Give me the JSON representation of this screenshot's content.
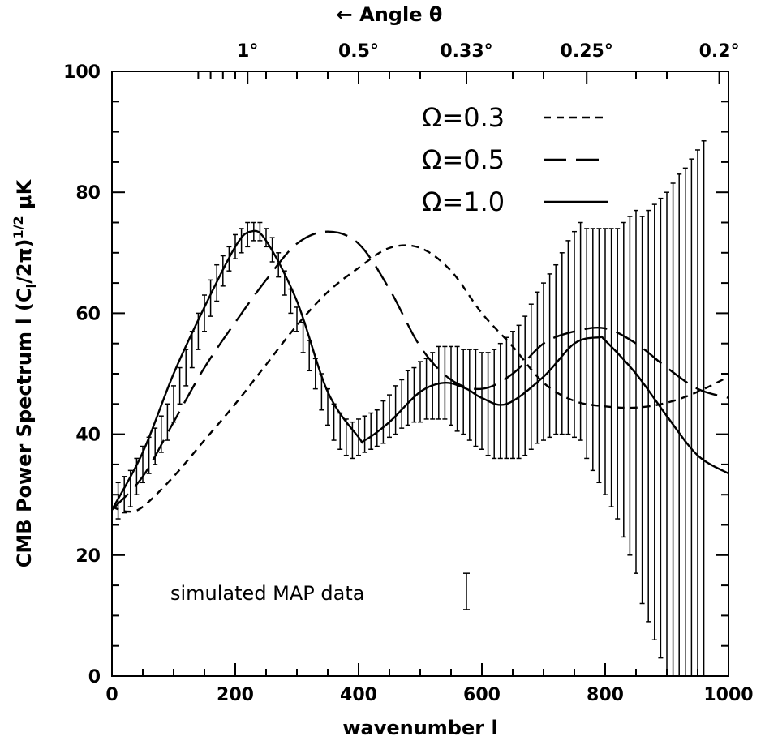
{
  "chart_data": {
    "type": "line",
    "xlabel": "wavenumber l",
    "ylabel": "CMB Power Spectrum l (Cₗ/2π)¹ᐟ² μK",
    "ylabel_parts": {
      "main": "CMB Power Spectrum l (C",
      "sub": "l",
      "mid": "/2π)",
      "sup": "1/2",
      "tail": " μK"
    },
    "top_axis_title": "← Angle θ",
    "top_tick_labels": [
      {
        "label": "1°",
        "l": 220
      },
      {
        "label": "0.5°",
        "l": 400
      },
      {
        "label": "0.33°",
        "l": 575
      },
      {
        "label": "0.25°",
        "l": 770
      },
      {
        "label": "0.2°",
        "l": 985
      }
    ],
    "xlim": [
      0,
      1000
    ],
    "ylim": [
      0,
      100
    ],
    "xticks": [
      0,
      200,
      400,
      600,
      800,
      1000
    ],
    "yticks": [
      0,
      20,
      40,
      60,
      80,
      100
    ],
    "legend_position": "top-right",
    "annotation": "simulated MAP data",
    "annotation_errorbar": {
      "x": 575,
      "y_low": 11,
      "y_high": 17
    },
    "series": [
      {
        "name": "Ω=0.3",
        "dash": "short",
        "x": [
          0,
          25,
          50,
          100,
          150,
          200,
          250,
          300,
          350,
          400,
          450,
          500,
          550,
          600,
          650,
          700,
          750,
          800,
          850,
          900,
          950,
          1000
        ],
        "values": [
          28,
          27.2,
          28,
          33,
          39,
          45,
          51.5,
          58,
          63.5,
          67.5,
          70.8,
          70.8,
          67,
          60,
          54.5,
          48.5,
          45.5,
          44.6,
          44.4,
          45.2,
          47,
          49.5
        ]
      },
      {
        "name": "Ω=0.5",
        "dash": "long",
        "x": [
          0,
          50,
          100,
          150,
          200,
          250,
          300,
          350,
          400,
          450,
          500,
          550,
          600,
          650,
          700,
          750,
          800,
          850,
          900,
          950,
          1000
        ],
        "values": [
          27.5,
          33,
          42,
          51,
          58.5,
          65.5,
          71.5,
          73.5,
          71.5,
          64,
          54.5,
          49,
          47.5,
          50,
          55,
          57,
          57.5,
          55,
          51,
          47.5,
          46
        ]
      },
      {
        "name": "Ω=1.0",
        "dash": "solid",
        "x": [
          0,
          50,
          100,
          150,
          200,
          225,
          250,
          300,
          350,
          400,
          410,
          450,
          500,
          540,
          575,
          600,
          640,
          700,
          750,
          790,
          800,
          850,
          900,
          950,
          1000
        ],
        "values": [
          27.5,
          37,
          50,
          61,
          71,
          73.5,
          72,
          62,
          47,
          39.5,
          39,
          42,
          47,
          48.5,
          47.5,
          46,
          45,
          49.5,
          55,
          56,
          55.5,
          50,
          43,
          36.5,
          33.5
        ]
      }
    ],
    "data_points": {
      "name": "simulated MAP data",
      "x": [
        10,
        20,
        30,
        40,
        50,
        60,
        70,
        80,
        90,
        100,
        110,
        120,
        130,
        140,
        150,
        160,
        170,
        180,
        190,
        200,
        210,
        220,
        230,
        240,
        250,
        260,
        270,
        280,
        290,
        300,
        310,
        320,
        330,
        340,
        350,
        360,
        370,
        380,
        390,
        400,
        410,
        420,
        430,
        440,
        450,
        460,
        470,
        480,
        490,
        500,
        510,
        520,
        530,
        540,
        550,
        560,
        570,
        580,
        590,
        600,
        610,
        620,
        630,
        640,
        650,
        660,
        670,
        680,
        690,
        700,
        710,
        720,
        730,
        740,
        750,
        760,
        770,
        780,
        790,
        800,
        810,
        820,
        830,
        840,
        850,
        860,
        870,
        880,
        890,
        900,
        910,
        920,
        930,
        940,
        950,
        960
      ],
      "values": [
        29,
        30,
        31,
        33,
        35,
        36.5,
        38,
        40,
        42,
        45,
        48,
        51,
        54,
        57,
        60,
        62.5,
        65,
        67,
        69,
        71,
        72,
        73,
        73.5,
        73.5,
        72.5,
        70.5,
        68,
        65,
        62,
        59,
        56,
        53,
        50,
        47,
        44.5,
        42,
        40.5,
        39.5,
        39,
        39.5,
        40,
        40.5,
        41,
        42,
        43,
        44,
        45,
        46,
        46.5,
        47,
        47.5,
        48,
        48.5,
        48.5,
        48,
        47.5,
        47,
        46.5,
        46,
        45.5,
        45,
        45,
        45.5,
        46,
        46.5,
        47,
        48,
        49.5,
        51,
        52,
        53,
        54,
        55,
        56,
        56.5,
        57,
        55,
        54,
        53,
        52,
        51,
        50,
        49,
        48,
        47,
        44,
        43,
        42,
        41,
        40,
        39.5,
        39,
        38,
        37.5,
        37,
        36.5
      ],
      "err": [
        3,
        3,
        3,
        3,
        3,
        3,
        3,
        3,
        3,
        3,
        3,
        3,
        3,
        3,
        3,
        3,
        3,
        2.5,
        2,
        2,
        2,
        2,
        1.5,
        1.5,
        1.5,
        2,
        2,
        2,
        2,
        2,
        2.5,
        2.5,
        2.5,
        3,
        3,
        3,
        3,
        3,
        3,
        3,
        3,
        3,
        3,
        3.5,
        3.5,
        4,
        4,
        4.5,
        4.5,
        5,
        5,
        5.5,
        6,
        6,
        6.5,
        7,
        7,
        7.5,
        8,
        8,
        8.5,
        9,
        9.5,
        10,
        10.5,
        11,
        11.5,
        12,
        12.5,
        13,
        13.5,
        14,
        15,
        16,
        17,
        18,
        19,
        20,
        21,
        22,
        23,
        24,
        26,
        28,
        30,
        32,
        34,
        36,
        38,
        40,
        42,
        44,
        46,
        48,
        50,
        52
      ]
    }
  }
}
